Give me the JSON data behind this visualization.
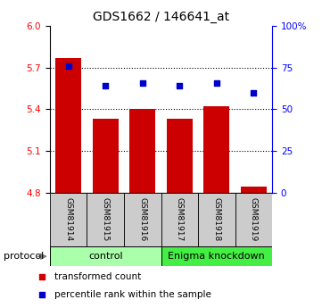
{
  "title": "GDS1662 / 146641_at",
  "samples": [
    "GSM81914",
    "GSM81915",
    "GSM81916",
    "GSM81917",
    "GSM81918",
    "GSM81919"
  ],
  "bar_values": [
    5.77,
    5.33,
    5.4,
    5.33,
    5.42,
    4.84
  ],
  "percentile_values": [
    76,
    64,
    66,
    64,
    66,
    60
  ],
  "bar_color": "#cc0000",
  "dot_color": "#0000cc",
  "ylim_left": [
    4.8,
    6.0
  ],
  "ylim_right": [
    0,
    100
  ],
  "yticks_left": [
    4.8,
    5.1,
    5.4,
    5.7,
    6.0
  ],
  "yticks_right": [
    0,
    25,
    50,
    75,
    100
  ],
  "ytick_labels_right": [
    "0",
    "25",
    "50",
    "75",
    "100%"
  ],
  "hlines": [
    5.1,
    5.4,
    5.7
  ],
  "control_label": "control",
  "knockdown_label": "Enigma knockdown",
  "protocol_label": "protocol",
  "legend_bar_label": "transformed count",
  "legend_dot_label": "percentile rank within the sample",
  "control_color": "#aaffaa",
  "knockdown_color": "#44ee44",
  "sample_box_color": "#cccccc",
  "bar_width": 0.7,
  "bar_bottom": 4.8,
  "fig_width": 3.61,
  "fig_height": 3.45,
  "dpi": 100
}
